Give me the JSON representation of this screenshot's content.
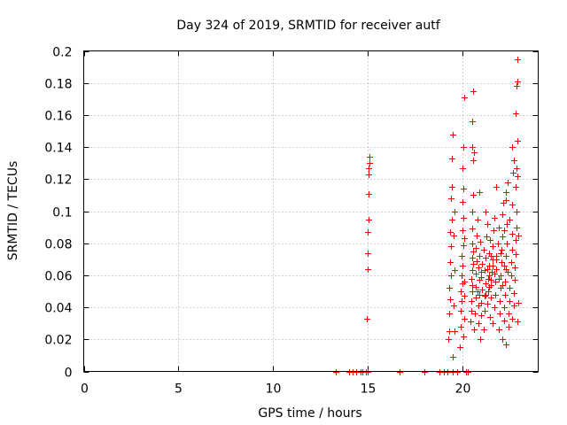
{
  "chart_data": {
    "type": "scatter",
    "title": "Day 324 of 2019, SRMTID for receiver autf",
    "xlabel": "GPS time / hours",
    "ylabel": "SRMTID / TECUs",
    "xlim": [
      0,
      24
    ],
    "ylim": [
      0,
      0.2
    ],
    "xticks": [
      0,
      5,
      10,
      15,
      20
    ],
    "xtick_labels": [
      "0",
      "5",
      "10",
      "15",
      "20"
    ],
    "yticks": [
      0,
      0.02,
      0.04,
      0.06,
      0.08,
      0.1,
      0.12,
      0.14,
      0.16,
      0.18,
      0.2
    ],
    "ytick_labels": [
      "0",
      "0.02",
      "0.04",
      "0.06",
      "0.08",
      "0.1",
      "0.12",
      "0.14",
      "0.16",
      "0.18",
      "0.2"
    ],
    "grid": true,
    "legend": "none",
    "marker": "plus",
    "color": "#ff0000",
    "points": [
      [
        13.3,
        0
      ],
      [
        14.0,
        0
      ],
      [
        14.2,
        0
      ],
      [
        14.4,
        0
      ],
      [
        14.6,
        0
      ],
      [
        14.7,
        0
      ],
      [
        14.9,
        0
      ],
      [
        15.0,
        0
      ],
      [
        16.7,
        0
      ],
      [
        18.0,
        0
      ],
      [
        18.8,
        0
      ],
      [
        19.0,
        0
      ],
      [
        19.2,
        0
      ],
      [
        19.5,
        0
      ],
      [
        19.7,
        0
      ],
      [
        20.2,
        0
      ],
      [
        20.3,
        0
      ],
      [
        14.95,
        0.033
      ],
      [
        14.98,
        0.064
      ],
      [
        15.0,
        0.074
      ],
      [
        15.0,
        0.087
      ],
      [
        15.02,
        0.095
      ],
      [
        15.03,
        0.111
      ],
      [
        15.05,
        0.123
      ],
      [
        15.05,
        0.127
      ],
      [
        15.07,
        0.13
      ],
      [
        15.07,
        0.134
      ],
      [
        19.25,
        0.02
      ],
      [
        19.3,
        0.025
      ],
      [
        19.3,
        0.036
      ],
      [
        19.35,
        0.045
      ],
      [
        19.3,
        0.052
      ],
      [
        19.4,
        0.06
      ],
      [
        19.35,
        0.068
      ],
      [
        19.4,
        0.078
      ],
      [
        19.35,
        0.087
      ],
      [
        19.45,
        0.095
      ],
      [
        19.4,
        0.108
      ],
      [
        19.45,
        0.115
      ],
      [
        19.45,
        0.133
      ],
      [
        19.5,
        0.148
      ],
      [
        19.5,
        0.009
      ],
      [
        19.6,
        0.025
      ],
      [
        19.55,
        0.041
      ],
      [
        19.6,
        0.063
      ],
      [
        19.55,
        0.085
      ],
      [
        19.6,
        0.1
      ],
      [
        19.85,
        0.015
      ],
      [
        19.9,
        0.028
      ],
      [
        19.9,
        0.038
      ],
      [
        19.95,
        0.044
      ],
      [
        19.9,
        0.05
      ],
      [
        20.0,
        0.055
      ],
      [
        19.95,
        0.06
      ],
      [
        20.0,
        0.066
      ],
      [
        19.95,
        0.072
      ],
      [
        20.05,
        0.079
      ],
      [
        20.0,
        0.088
      ],
      [
        20.05,
        0.096
      ],
      [
        20.0,
        0.106
      ],
      [
        20.05,
        0.114
      ],
      [
        20.0,
        0.127
      ],
      [
        20.05,
        0.14
      ],
      [
        20.1,
        0.171
      ],
      [
        20.05,
        0.022
      ],
      [
        20.1,
        0.033
      ],
      [
        20.1,
        0.047
      ],
      [
        20.1,
        0.056
      ],
      [
        20.1,
        0.083
      ],
      [
        20.4,
        0.031
      ],
      [
        20.45,
        0.038
      ],
      [
        20.45,
        0.044
      ],
      [
        20.5,
        0.05
      ],
      [
        20.5,
        0.054
      ],
      [
        20.45,
        0.058
      ],
      [
        20.5,
        0.063
      ],
      [
        20.55,
        0.067
      ],
      [
        20.5,
        0.071
      ],
      [
        20.55,
        0.075
      ],
      [
        20.5,
        0.08
      ],
      [
        20.5,
        0.089
      ],
      [
        20.5,
        0.1
      ],
      [
        20.55,
        0.11
      ],
      [
        20.55,
        0.132
      ],
      [
        20.6,
        0.137
      ],
      [
        20.5,
        0.14
      ],
      [
        20.5,
        0.156
      ],
      [
        20.55,
        0.175
      ],
      [
        20.6,
        0.026
      ],
      [
        20.65,
        0.036
      ],
      [
        20.7,
        0.046
      ],
      [
        20.7,
        0.053
      ],
      [
        20.7,
        0.061
      ],
      [
        20.75,
        0.069
      ],
      [
        20.7,
        0.077
      ],
      [
        20.75,
        0.085
      ],
      [
        20.8,
        0.095
      ],
      [
        20.85,
        0.03
      ],
      [
        20.85,
        0.041
      ],
      [
        20.9,
        0.048
      ],
      [
        20.9,
        0.057
      ],
      [
        20.85,
        0.065
      ],
      [
        20.9,
        0.072
      ],
      [
        20.95,
        0.081
      ],
      [
        20.95,
        0.02
      ],
      [
        21.0,
        0.035
      ],
      [
        21.0,
        0.043
      ],
      [
        21.05,
        0.051
      ],
      [
        21.0,
        0.059
      ],
      [
        21.05,
        0.067
      ],
      [
        21.1,
        0.076
      ],
      [
        21.1,
        0.026
      ],
      [
        21.15,
        0.038
      ],
      [
        21.15,
        0.047
      ],
      [
        21.2,
        0.055
      ],
      [
        21.15,
        0.063
      ],
      [
        21.2,
        0.071
      ],
      [
        21.25,
        0.084
      ],
      [
        21.3,
        0.092
      ],
      [
        21.3,
        0.042
      ],
      [
        21.35,
        0.05
      ],
      [
        21.35,
        0.058
      ],
      [
        21.4,
        0.066
      ],
      [
        21.4,
        0.074
      ],
      [
        21.45,
        0.082
      ],
      [
        21.45,
        0.034
      ],
      [
        21.5,
        0.046
      ],
      [
        21.5,
        0.054
      ],
      [
        21.55,
        0.062
      ],
      [
        21.6,
        0.07
      ],
      [
        21.6,
        0.078
      ],
      [
        21.65,
        0.088
      ],
      [
        21.7,
        0.096
      ],
      [
        21.6,
        0.03
      ],
      [
        21.7,
        0.04
      ],
      [
        21.75,
        0.048
      ],
      [
        21.75,
        0.056
      ],
      [
        21.8,
        0.064
      ],
      [
        21.8,
        0.072
      ],
      [
        21.85,
        0.08
      ],
      [
        21.9,
        0.09
      ],
      [
        21.9,
        0.026
      ],
      [
        21.95,
        0.036
      ],
      [
        21.95,
        0.044
      ],
      [
        22.0,
        0.052
      ],
      [
        22.0,
        0.06
      ],
      [
        22.05,
        0.068
      ],
      [
        22.05,
        0.076
      ],
      [
        22.1,
        0.084
      ],
      [
        22.1,
        0.098
      ],
      [
        22.15,
        0.105
      ],
      [
        22.1,
        0.02
      ],
      [
        22.2,
        0.032
      ],
      [
        22.2,
        0.04
      ],
      [
        22.25,
        0.048
      ],
      [
        22.25,
        0.056
      ],
      [
        22.3,
        0.064
      ],
      [
        22.3,
        0.072
      ],
      [
        22.35,
        0.08
      ],
      [
        22.35,
        0.092
      ],
      [
        22.3,
        0.112
      ],
      [
        22.4,
        0.118
      ],
      [
        22.3,
        0.017
      ],
      [
        22.45,
        0.028
      ],
      [
        22.45,
        0.036
      ],
      [
        22.5,
        0.044
      ],
      [
        22.5,
        0.052
      ],
      [
        22.55,
        0.06
      ],
      [
        22.55,
        0.068
      ],
      [
        22.6,
        0.076
      ],
      [
        22.6,
        0.086
      ],
      [
        22.5,
        0.095
      ],
      [
        22.6,
        0.104
      ],
      [
        22.65,
        0.124
      ],
      [
        22.7,
        0.132
      ],
      [
        22.6,
        0.033
      ],
      [
        22.7,
        0.041
      ],
      [
        22.7,
        0.049
      ],
      [
        22.75,
        0.057
      ],
      [
        22.75,
        0.065
      ],
      [
        22.8,
        0.073
      ],
      [
        22.8,
        0.082
      ],
      [
        22.85,
        0.09
      ],
      [
        22.85,
        0.1
      ],
      [
        22.8,
        0.115
      ],
      [
        22.85,
        0.127
      ],
      [
        22.9,
        0.144
      ],
      [
        22.8,
        0.161
      ],
      [
        22.85,
        0.178
      ],
      [
        22.9,
        0.181
      ],
      [
        22.9,
        0.195
      ],
      [
        22.9,
        0.031
      ],
      [
        22.95,
        0.043
      ],
      [
        22.95,
        0.085
      ],
      [
        22.9,
        0.122
      ],
      [
        22.3,
        0.107
      ],
      [
        21.8,
        0.115
      ],
      [
        22.6,
        0.14
      ],
      [
        22.2,
        0.088
      ],
      [
        21.2,
        0.1
      ],
      [
        20.9,
        0.112
      ],
      [
        21.4,
        0.06
      ],
      [
        21.3,
        0.064
      ],
      [
        21.5,
        0.057
      ],
      [
        21.7,
        0.061
      ],
      [
        21.9,
        0.058
      ],
      [
        22.1,
        0.054
      ],
      [
        21.6,
        0.066
      ],
      [
        21.4,
        0.053
      ],
      [
        21.2,
        0.048
      ],
      [
        21.0,
        0.062
      ],
      [
        20.8,
        0.05
      ],
      [
        22.4,
        0.062
      ],
      [
        22.2,
        0.066
      ],
      [
        21.8,
        0.07
      ],
      [
        21.5,
        0.072
      ],
      [
        22.0,
        0.074
      ]
    ]
  }
}
